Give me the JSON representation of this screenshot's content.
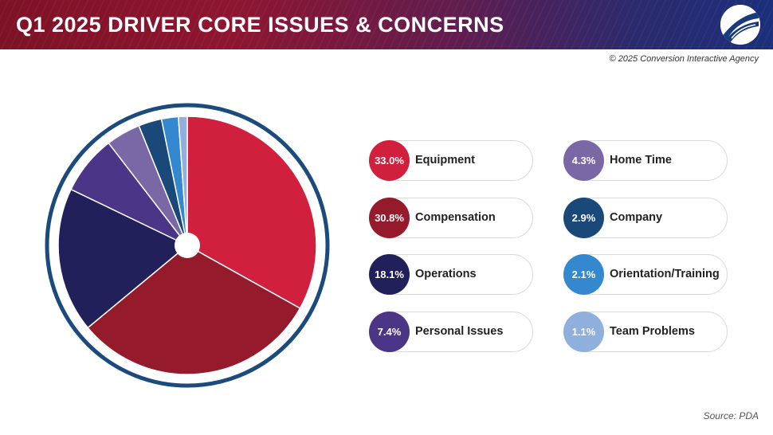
{
  "header": {
    "title": "Q1 2025 DRIVER CORE ISSUES & CONCERNS"
  },
  "copyright": "© 2025 Conversion Interactive Agency",
  "source": "Source:  PDA",
  "chart_data": {
    "type": "pie",
    "title": "Q1 2025 DRIVER CORE ISSUES & CONCERNS",
    "start_angle_deg": 0,
    "direction": "clockwise",
    "slices": [
      {
        "label": "Equipment",
        "value": 33.0,
        "display": "33.0%",
        "color": "#d11f3e"
      },
      {
        "label": "Compensation",
        "value": 30.8,
        "display": "30.8%",
        "color": "#951a2c"
      },
      {
        "label": "Operations",
        "value": 18.1,
        "display": "18.1%",
        "color": "#22205a"
      },
      {
        "label": "Personal Issues",
        "value": 7.4,
        "display": "7.4%",
        "color": "#4b3587"
      },
      {
        "label": "Home Time",
        "value": 4.3,
        "display": "4.3%",
        "color": "#7a68a6"
      },
      {
        "label": "Company",
        "value": 2.9,
        "display": "2.9%",
        "color": "#1a4878"
      },
      {
        "label": "Orientation/Training",
        "value": 2.1,
        "display": "2.1%",
        "color": "#3388cf"
      },
      {
        "label": "Team Problems",
        "value": 1.1,
        "display": "1.1%",
        "color": "#8fafdc"
      }
    ],
    "outer_ring_color": "#1b4a7d",
    "legend_placement": "right"
  }
}
